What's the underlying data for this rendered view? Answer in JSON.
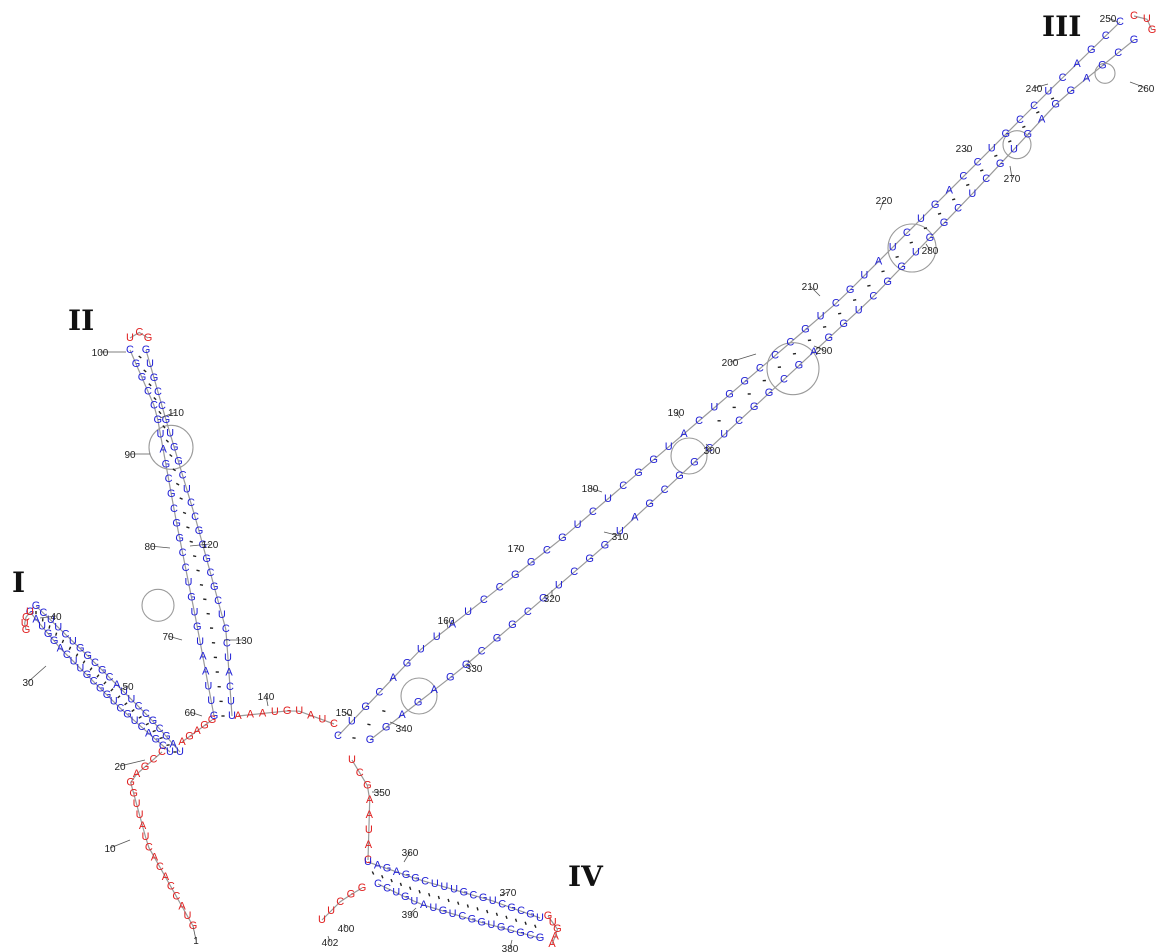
{
  "colors": {
    "paired": "#1f1fd6",
    "unpaired": "#e02020",
    "backbone": "#9a9a9a"
  },
  "domains": [
    {
      "id": "I",
      "label": "I"
    },
    {
      "id": "II",
      "label": "II"
    },
    {
      "id": "III",
      "label": "III"
    },
    {
      "id": "IV",
      "label": "IV"
    }
  ],
  "position_labels": [
    "1",
    "10",
    "20",
    "30",
    "40",
    "50",
    "60",
    "70",
    "80",
    "90",
    "100",
    "110",
    "120",
    "130",
    "140",
    "150",
    "160",
    "170",
    "180",
    "190",
    "200",
    "210",
    "220",
    "230",
    "240",
    "250",
    "260",
    "270",
    "280",
    "290",
    "300",
    "310",
    "320",
    "330",
    "340",
    "350",
    "360",
    "370",
    "380",
    "390",
    "400",
    "402"
  ],
  "segments": [
    {
      "name": "5-prime-tail",
      "seq": "GUACCACACUAUUGGAGCC",
      "state": "unpaired"
    },
    {
      "name": "domain-I-stem",
      "seq": "UCGACUGCUGGCGUUCAGGUAG",
      "state": "paired"
    },
    {
      "name": "domain-I-loop",
      "seq": "UCUG",
      "state": "unpaired"
    },
    {
      "name": "domain-I-stem-3",
      "seq": "GCUUCUGGCGCAUUCCGCGAU",
      "state": "paired"
    },
    {
      "name": "junction-a",
      "seq": "AGAGG",
      "state": "unpaired"
    },
    {
      "name": "domain-II-stem",
      "seq": "GUUAAUGUGUCCGGCGCGAUGCCGGC",
      "state": "paired"
    },
    {
      "name": "domain-II-loop",
      "seq": "UCG",
      "state": "unpaired"
    },
    {
      "name": "domain-II-stem-3",
      "seq": "GUGCCGUGGCUCCGGGCGCUCCUACUU",
      "state": "paired"
    },
    {
      "name": "junction-b",
      "seq": "AAAUGUAUC",
      "state": "unpaired"
    },
    {
      "name": "domain-III-stem",
      "seq": "CUGCAGUUAUCCGGCGUCUCGGUACUGGCCCGUCGUAUCUGACCUGCCUCAGCC",
      "state": "paired"
    },
    {
      "name": "domain-III-loop",
      "seq": "CUG",
      "state": "unpaired"
    },
    {
      "name": "domain-III-stem-3",
      "seq": "GCGAGGAGUGCUCGGUGGCUGGAGCGGCUCGGCGAUGGCUGCGGCGGAGAGG",
      "state": "paired"
    },
    {
      "name": "junction-c",
      "seq": "UCGAAUAC",
      "state": "unpaired"
    },
    {
      "name": "domain-IV-stem",
      "seq": "UAGAGGCUUUGCGUCGCGU",
      "state": "paired"
    },
    {
      "name": "domain-IV-loop",
      "seq": "GUGAA",
      "state": "unpaired"
    },
    {
      "name": "domain-IV-stem-3",
      "seq": "GCGCGUGGCUGUAUGUCC",
      "state": "paired"
    },
    {
      "name": "3-prime-tail",
      "seq": "GGCUU",
      "state": "unpaired"
    }
  ]
}
